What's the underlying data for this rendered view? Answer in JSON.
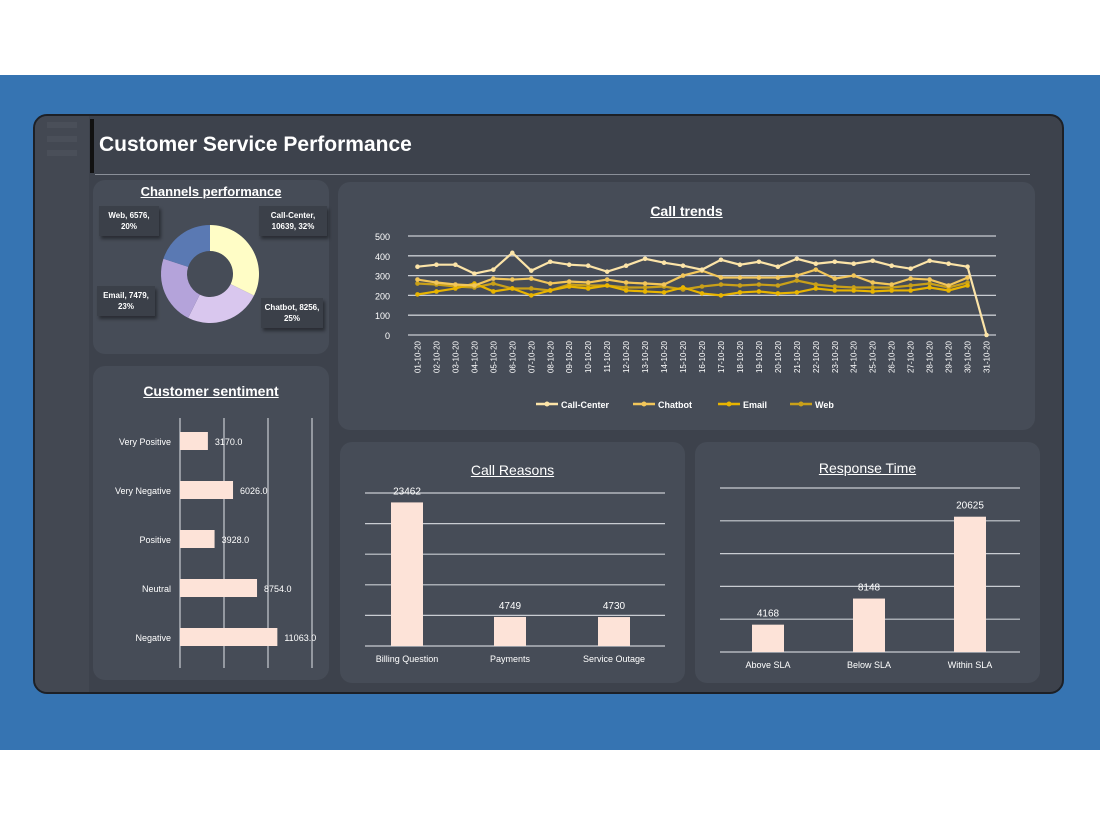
{
  "title": "Customer Service Performance",
  "colors": {
    "band": "#3674b2",
    "bar": "#fde3d8",
    "grid": "#c9ccd2"
  },
  "channels": {
    "title": "Channels performance",
    "slices": [
      {
        "name": "Call-Center",
        "value": 10639,
        "pct": "32%",
        "color": "#fffdc6",
        "label": "Call-Center, 10639, 32%"
      },
      {
        "name": "Chatbot",
        "value": 8256,
        "pct": "25%",
        "color": "#d9c7ee",
        "label": "Chatbot, 8256, 25%"
      },
      {
        "name": "Email",
        "value": 7479,
        "pct": "23%",
        "color": "#b4a3da",
        "label": "Email, 7479, 23%"
      },
      {
        "name": "Web",
        "value": 6576,
        "pct": "20%",
        "color": "#5a79b3",
        "label": "Web, 6576, 20%"
      }
    ]
  },
  "chart_data": [
    {
      "type": "line",
      "title": "Call trends",
      "ylim": [
        0,
        500
      ],
      "yticks": [
        0,
        100,
        200,
        300,
        400,
        500
      ],
      "grid": true,
      "legend": "bottom",
      "categories": [
        "01-10-20",
        "02-10-20",
        "03-10-20",
        "04-10-20",
        "05-10-20",
        "06-10-20",
        "07-10-20",
        "08-10-20",
        "09-10-20",
        "10-10-20",
        "11-10-20",
        "12-10-20",
        "13-10-20",
        "14-10-20",
        "15-10-20",
        "16-10-20",
        "17-10-20",
        "18-10-20",
        "19-10-20",
        "20-10-20",
        "21-10-20",
        "22-10-20",
        "23-10-20",
        "24-10-20",
        "25-10-20",
        "26-10-20",
        "27-10-20",
        "28-10-20",
        "29-10-20",
        "30-10-20",
        "31-10-20"
      ],
      "series": [
        {
          "name": "Call-Center",
          "color": "#fce4a8",
          "values": [
            345,
            355,
            355,
            310,
            330,
            415,
            325,
            370,
            355,
            350,
            320,
            350,
            385,
            365,
            350,
            330,
            380,
            355,
            370,
            345,
            385,
            360,
            370,
            360,
            375,
            350,
            335,
            375,
            360,
            345,
            0
          ]
        },
        {
          "name": "Chatbot",
          "color": "#f2c65a",
          "values": [
            280,
            265,
            255,
            250,
            285,
            280,
            285,
            260,
            270,
            265,
            280,
            265,
            260,
            255,
            300,
            325,
            290,
            290,
            290,
            290,
            300,
            330,
            285,
            300,
            265,
            255,
            285,
            280,
            250,
            290,
            null
          ]
        },
        {
          "name": "Email",
          "color": "#e8b400",
          "values": [
            205,
            220,
            235,
            260,
            220,
            235,
            200,
            225,
            245,
            235,
            250,
            225,
            220,
            215,
            240,
            210,
            200,
            215,
            220,
            210,
            215,
            235,
            225,
            225,
            220,
            225,
            225,
            240,
            225,
            250,
            null
          ]
        },
        {
          "name": "Web",
          "color": "#c9a019",
          "values": [
            260,
            255,
            245,
            240,
            260,
            235,
            235,
            225,
            255,
            250,
            250,
            240,
            240,
            245,
            230,
            245,
            255,
            250,
            255,
            250,
            275,
            255,
            245,
            240,
            240,
            240,
            250,
            260,
            240,
            265,
            null
          ]
        }
      ]
    },
    {
      "type": "bar",
      "orientation": "horizontal",
      "title": "Customer sentiment",
      "xlim": [
        0,
        15000
      ],
      "grid": true,
      "categories": [
        "Very Positive",
        "Very Negative",
        "Positive",
        "Neutral",
        "Negative"
      ],
      "values": [
        3170,
        6026,
        3928,
        8754,
        11063
      ],
      "data_labels": [
        "3170.0",
        "6026.0",
        "3928.0",
        "8754.0",
        "11063.0"
      ]
    },
    {
      "type": "bar",
      "title": "Call Reasons",
      "ylim": [
        0,
        25000
      ],
      "grid": true,
      "categories": [
        "Billing Question",
        "Payments",
        "Service Outage"
      ],
      "values": [
        23462,
        4749,
        4730
      ],
      "data_labels": [
        "23462",
        "4749",
        "4730"
      ]
    },
    {
      "type": "bar",
      "title": "Response Time",
      "ylim": [
        0,
        25000
      ],
      "grid": true,
      "categories": [
        "Above SLA",
        "Below SLA",
        "Within SLA"
      ],
      "values": [
        4168,
        8148,
        20625
      ],
      "data_labels": [
        "4168",
        "8148",
        "20625"
      ]
    }
  ]
}
